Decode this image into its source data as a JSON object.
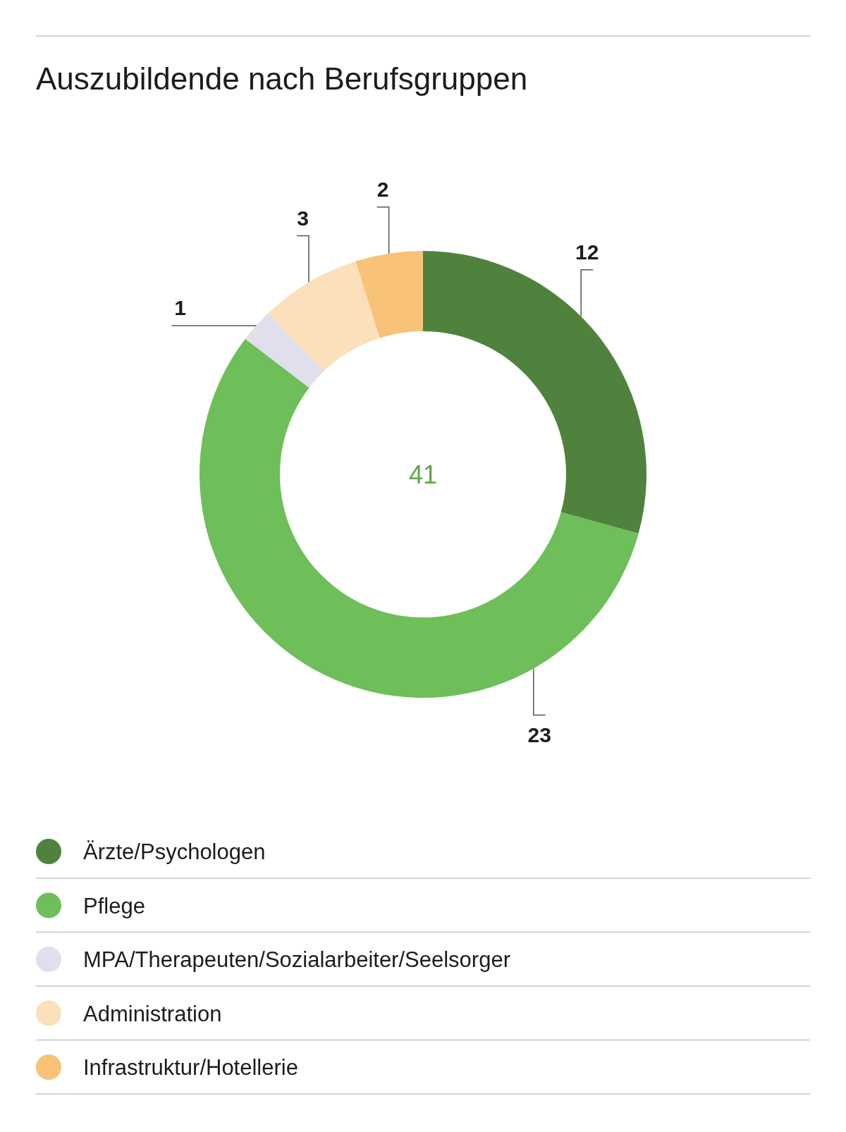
{
  "chart_data": {
    "type": "donut",
    "title": "Auszubildende nach Berufsgruppen",
    "categories": [
      "Ärzte/Psychologen",
      "Pflege",
      "MPA/Therapeuten/Sozialarbeiter/Seelsorger",
      "Administration",
      "Infrastruktur/Hotellerie"
    ],
    "values": [
      12,
      23,
      1,
      3,
      2
    ],
    "colors": [
      "#4f833d",
      "#6ebe5a",
      "#dfe0ec",
      "#fcdfbb",
      "#f8c278"
    ],
    "data_labels": true,
    "legend": "bottom",
    "annotations": [
      "41"
    ]
  }
}
